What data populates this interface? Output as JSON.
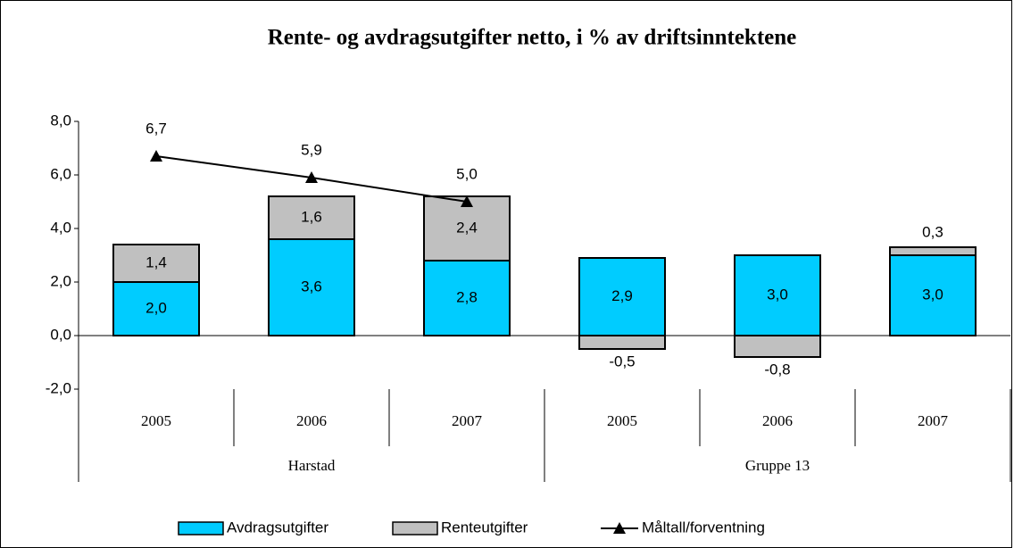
{
  "chart_data": {
    "type": "stacked-bar-line",
    "title": "Rente- og avdragsutgifter netto, i % av driftsinntektene",
    "groups": [
      {
        "label": "Harstad",
        "categories": [
          "2005",
          "2006",
          "2007"
        ]
      },
      {
        "label": "Gruppe 13",
        "categories": [
          "2005",
          "2006",
          "2007"
        ]
      }
    ],
    "series": [
      {
        "name": "Avdragsutgifter",
        "kind": "bar",
        "color": "#00ccff",
        "values": [
          2.0,
          3.6,
          2.8,
          2.9,
          3.0,
          3.0
        ],
        "value_labels": [
          "2,0",
          "3,6",
          "2,8",
          "2,9",
          "3,0",
          "3,0"
        ]
      },
      {
        "name": "Renteutgifter",
        "kind": "bar",
        "color": "#c0c0c0",
        "values": [
          1.4,
          1.6,
          2.4,
          -0.5,
          -0.8,
          0.3
        ],
        "value_labels": [
          "1,4",
          "1,6",
          "2,4",
          "-0,5",
          "-0,8",
          "0,3"
        ]
      },
      {
        "name": "Måltall/forventning",
        "kind": "line",
        "color": "#000000",
        "values": [
          6.7,
          5.9,
          5.0,
          null,
          null,
          null
        ],
        "value_labels": [
          "6,7",
          "5,9",
          "5,0",
          null,
          null,
          null
        ]
      }
    ],
    "ylim": [
      -2,
      8
    ],
    "yticks": [
      {
        "value": -2,
        "label": "-2,0"
      },
      {
        "value": 0,
        "label": "0,0"
      },
      {
        "value": 2,
        "label": "2,0"
      },
      {
        "value": 4,
        "label": "4,0"
      },
      {
        "value": 6,
        "label": "6,0"
      },
      {
        "value": 8,
        "label": "8,0"
      }
    ],
    "legend": "bottom"
  }
}
